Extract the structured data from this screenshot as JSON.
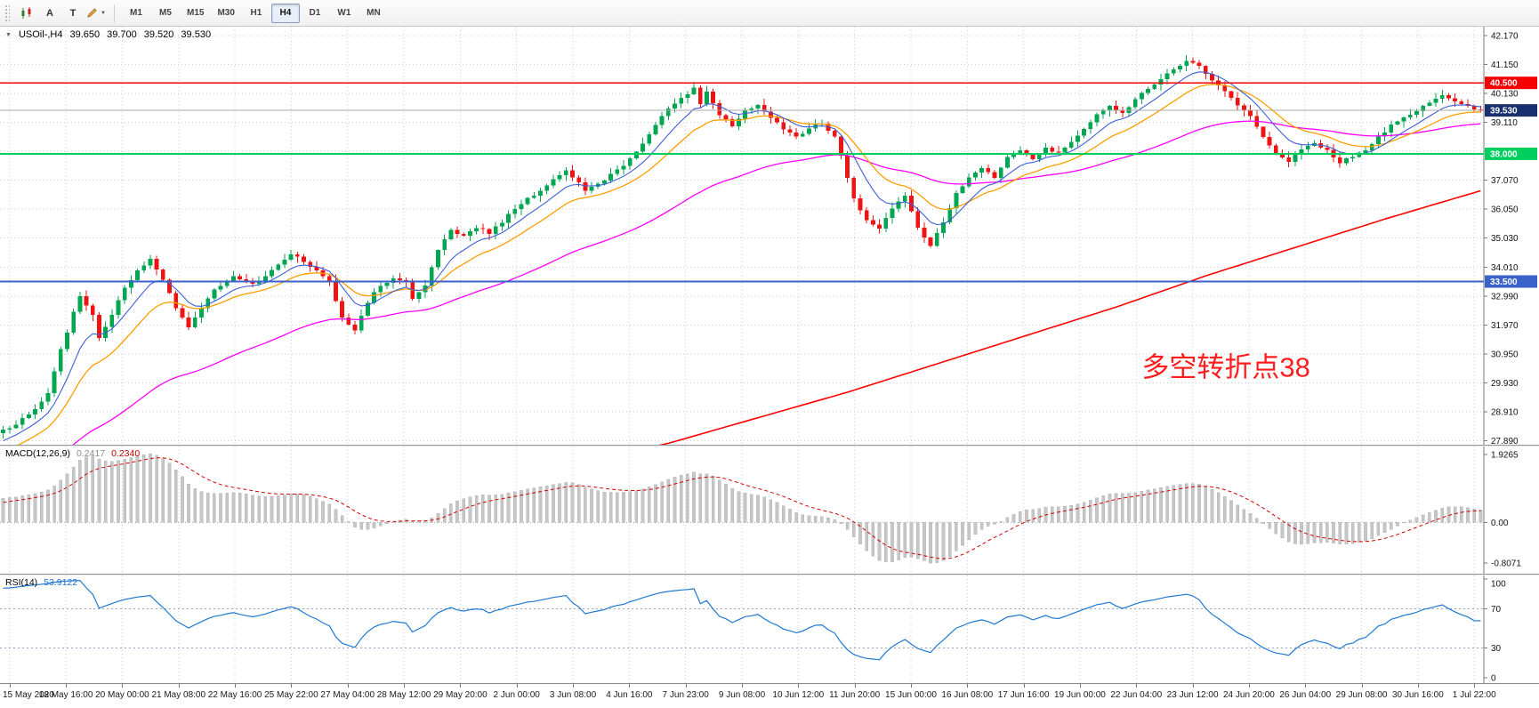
{
  "toolbar": {
    "arrow_tool_label": "A",
    "text_tool_label": "T",
    "dropdown_caret": "▼",
    "timeframes": [
      "M1",
      "M5",
      "M15",
      "M30",
      "H1",
      "H4",
      "D1",
      "W1",
      "MN"
    ],
    "active_timeframe": "H4"
  },
  "symbol_bar": {
    "marker_glyph": "▼",
    "symbol": "USOil-,H4",
    "open": "39.650",
    "high": "39.700",
    "low": "39.520",
    "close": "39.530"
  },
  "chart_data": {
    "type": "candlestick",
    "title": "USOil-,H4",
    "ohlc_current": {
      "open": 39.65,
      "high": 39.7,
      "low": 39.52,
      "close": 39.53
    },
    "y_range": [
      27.75,
      42.48
    ],
    "grid_color": "#CDCDCD",
    "price_scale_labels": [
      "42.170",
      "41.150",
      "40.130",
      "39.110",
      "38.090",
      "37.070",
      "36.050",
      "35.030",
      "34.010",
      "32.990",
      "31.970",
      "30.950",
      "29.930",
      "28.910",
      "27.890"
    ],
    "time_labels": [
      "15 May 2020",
      "18 May 16:00",
      "20 May 00:00",
      "21 May 08:00",
      "22 May 16:00",
      "25 May 22:00",
      "27 May 04:00",
      "28 May 12:00",
      "29 May 20:00",
      "2 Jun 00:00",
      "3 Jun 08:00",
      "4 Jun 16:00",
      "7 Jun 23:00",
      "9 Jun 08:00",
      "10 Jun 12:00",
      "11 Jun 20:00",
      "15 Jun 00:00",
      "16 Jun 08:00",
      "17 Jun 16:00",
      "19 Jun 00:00",
      "22 Jun 04:00",
      "23 Jun 12:00",
      "24 Jun 20:00",
      "26 Jun 04:00",
      "29 Jun 08:00",
      "30 Jun 16:00",
      "1 Jul 22:00"
    ],
    "candle_colors": {
      "up": "#00A650",
      "down": "#ED1414"
    },
    "candles": {
      "count": 232,
      "close_anchors": [
        [
          0,
          28.3
        ],
        [
          2,
          28.45
        ],
        [
          4,
          28.85
        ],
        [
          6,
          29.25
        ],
        [
          7,
          29.55
        ],
        [
          9,
          31.1
        ],
        [
          11,
          32.4
        ],
        [
          12,
          33.0
        ],
        [
          14,
          32.3
        ],
        [
          15,
          31.5
        ],
        [
          17,
          32.3
        ],
        [
          19,
          33.3
        ],
        [
          21,
          33.85
        ],
        [
          23,
          34.3
        ],
        [
          25,
          33.6
        ],
        [
          27,
          32.6
        ],
        [
          29,
          31.9
        ],
        [
          31,
          32.6
        ],
        [
          33,
          33.2
        ],
        [
          36,
          33.7
        ],
        [
          39,
          33.4
        ],
        [
          42,
          33.9
        ],
        [
          45,
          34.5
        ],
        [
          47,
          34.2
        ],
        [
          49,
          33.9
        ],
        [
          51,
          33.5
        ],
        [
          53,
          32.2
        ],
        [
          55,
          31.8
        ],
        [
          57,
          32.8
        ],
        [
          59,
          33.4
        ],
        [
          61,
          33.6
        ],
        [
          63,
          33.5
        ],
        [
          64,
          32.9
        ],
        [
          66,
          33.4
        ],
        [
          68,
          34.6
        ],
        [
          70,
          35.3
        ],
        [
          72,
          35.1
        ],
        [
          74,
          35.4
        ],
        [
          76,
          35.2
        ],
        [
          78,
          35.6
        ],
        [
          80,
          36.1
        ],
        [
          82,
          36.4
        ],
        [
          84,
          36.7
        ],
        [
          86,
          37.1
        ],
        [
          88,
          37.4
        ],
        [
          89,
          37.2
        ],
        [
          91,
          36.7
        ],
        [
          93,
          36.9
        ],
        [
          95,
          37.3
        ],
        [
          97,
          37.6
        ],
        [
          98,
          37.8
        ],
        [
          100,
          38.4
        ],
        [
          102,
          39.0
        ],
        [
          104,
          39.6
        ],
        [
          106,
          40.0
        ],
        [
          108,
          40.3
        ],
        [
          109,
          39.8
        ],
        [
          110,
          40.2
        ],
        [
          112,
          39.4
        ],
        [
          114,
          39.0
        ],
        [
          116,
          39.5
        ],
        [
          118,
          39.7
        ],
        [
          120,
          39.3
        ],
        [
          122,
          38.9
        ],
        [
          124,
          38.6
        ],
        [
          126,
          38.9
        ],
        [
          128,
          39.1
        ],
        [
          130,
          38.6
        ],
        [
          131,
          37.9
        ],
        [
          133,
          36.4
        ],
        [
          135,
          35.7
        ],
        [
          137,
          35.4
        ],
        [
          139,
          36.1
        ],
        [
          141,
          36.5
        ],
        [
          143,
          35.4
        ],
        [
          145,
          34.8
        ],
        [
          147,
          35.6
        ],
        [
          149,
          36.6
        ],
        [
          151,
          37.2
        ],
        [
          153,
          37.5
        ],
        [
          155,
          37.2
        ],
        [
          157,
          37.9
        ],
        [
          159,
          38.1
        ],
        [
          161,
          37.8
        ],
        [
          163,
          38.2
        ],
        [
          165,
          38.0
        ],
        [
          167,
          38.4
        ],
        [
          169,
          38.9
        ],
        [
          171,
          39.4
        ],
        [
          173,
          39.7
        ],
        [
          175,
          39.4
        ],
        [
          177,
          39.9
        ],
        [
          179,
          40.3
        ],
        [
          181,
          40.6
        ],
        [
          183,
          41.0
        ],
        [
          185,
          41.3
        ],
        [
          187,
          41.1
        ],
        [
          189,
          40.6
        ],
        [
          191,
          40.2
        ],
        [
          193,
          39.7
        ],
        [
          195,
          39.3
        ],
        [
          197,
          38.6
        ],
        [
          199,
          38.0
        ],
        [
          201,
          37.7
        ],
        [
          203,
          38.2
        ],
        [
          205,
          38.4
        ],
        [
          207,
          38.1
        ],
        [
          209,
          37.7
        ],
        [
          211,
          37.9
        ],
        [
          213,
          38.1
        ],
        [
          215,
          38.6
        ],
        [
          217,
          39.0
        ],
        [
          219,
          39.3
        ],
        [
          221,
          39.5
        ],
        [
          223,
          39.8
        ],
        [
          225,
          40.1
        ],
        [
          227,
          39.9
        ],
        [
          229,
          39.7
        ],
        [
          231,
          39.53
        ]
      ]
    },
    "moving_averages": [
      {
        "name": "ma-slow",
        "type": "anchors",
        "color": "#FF0000",
        "width": 1.6,
        "anchors": [
          [
            80,
            26.6
          ],
          [
            104,
            27.8
          ],
          [
            118,
            28.7
          ],
          [
            132,
            29.6
          ],
          [
            146,
            30.6
          ],
          [
            160,
            31.6
          ],
          [
            174,
            32.6
          ],
          [
            188,
            33.7
          ],
          [
            202,
            34.7
          ],
          [
            216,
            35.7
          ],
          [
            231,
            36.7
          ]
        ]
      },
      {
        "name": "ma-medium",
        "type": "ema",
        "period": 55,
        "color": "#FF00FF",
        "width": 1.3
      },
      {
        "name": "ma-fast",
        "type": "ema",
        "period": 16,
        "color": "#FF9E00",
        "width": 1.3
      },
      {
        "name": "ma-short",
        "type": "ema",
        "period": 8,
        "color": "#3C5ED8",
        "width": 1.1
      }
    ],
    "horizontal_lines": [
      {
        "value": 40.5,
        "label": "40.500",
        "color": "#F40000",
        "width": 1.4
      },
      {
        "value": 38.0,
        "label": "38.000",
        "color": "#00CE5E",
        "width": 2
      },
      {
        "value": 33.5,
        "label": "33.500",
        "color": "#3A62C8",
        "width": 1.6
      }
    ],
    "bid_line": {
      "value": 39.53,
      "label": "39.530",
      "line_color": "#A9A9A9",
      "badge_color": "#18306E"
    },
    "annotation": {
      "text": "多空转折点38",
      "color": "#FF1E1E",
      "candle_index": 178,
      "price": 30.15,
      "font_size": 31
    },
    "macd": {
      "label": "MACD(12,26,9)",
      "value_main": "0.2417",
      "value_signal": "0.2340",
      "scale_max_label": "1.9265",
      "scale_zero_label": "0.00",
      "scale_min_label": "-0.8071",
      "histogram_color": "#C6C6C6",
      "signal_color": "#D40000"
    },
    "rsi": {
      "label": "RSI(14)",
      "value": "53.9122",
      "line_color": "#1E78D2",
      "levels": [
        70,
        30
      ],
      "scale_labels": [
        100,
        70,
        30,
        0
      ]
    }
  }
}
